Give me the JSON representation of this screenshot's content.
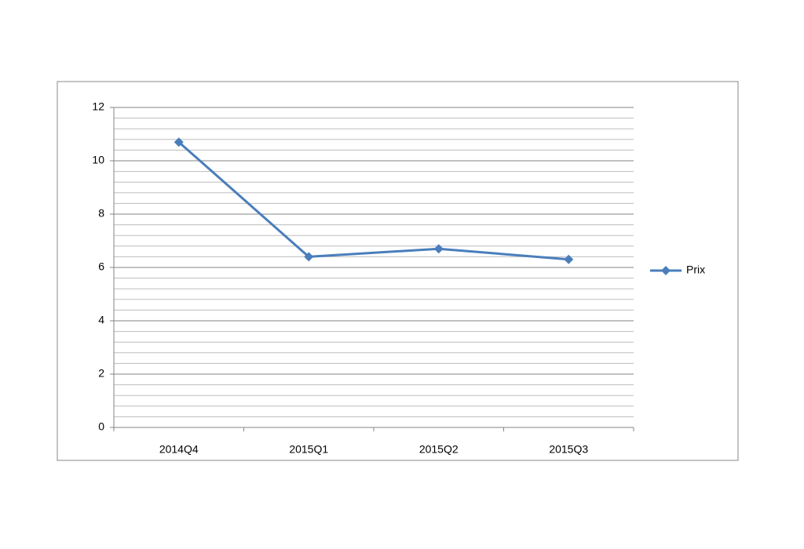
{
  "chart_data": {
    "type": "line",
    "categories": [
      "2014Q4",
      "2015Q1",
      "2015Q2",
      "2015Q3"
    ],
    "series": [
      {
        "name": "Prix",
        "color": "#4a7ebb",
        "values": [
          10.7,
          6.4,
          6.7,
          6.3
        ]
      }
    ],
    "ylim": [
      0,
      12
    ],
    "yticks": [
      0,
      2,
      4,
      6,
      8,
      10,
      12
    ],
    "yminorticks": [
      0.4,
      0.8,
      1.2,
      1.6,
      2.4,
      2.8,
      3.2,
      3.6,
      4.4,
      4.8,
      5.2,
      5.6,
      6.4,
      6.8,
      7.2,
      7.6,
      8.4,
      8.8,
      9.2,
      9.6,
      10.4,
      10.8,
      11.2,
      11.6
    ],
    "grid": true,
    "legend": "right"
  }
}
